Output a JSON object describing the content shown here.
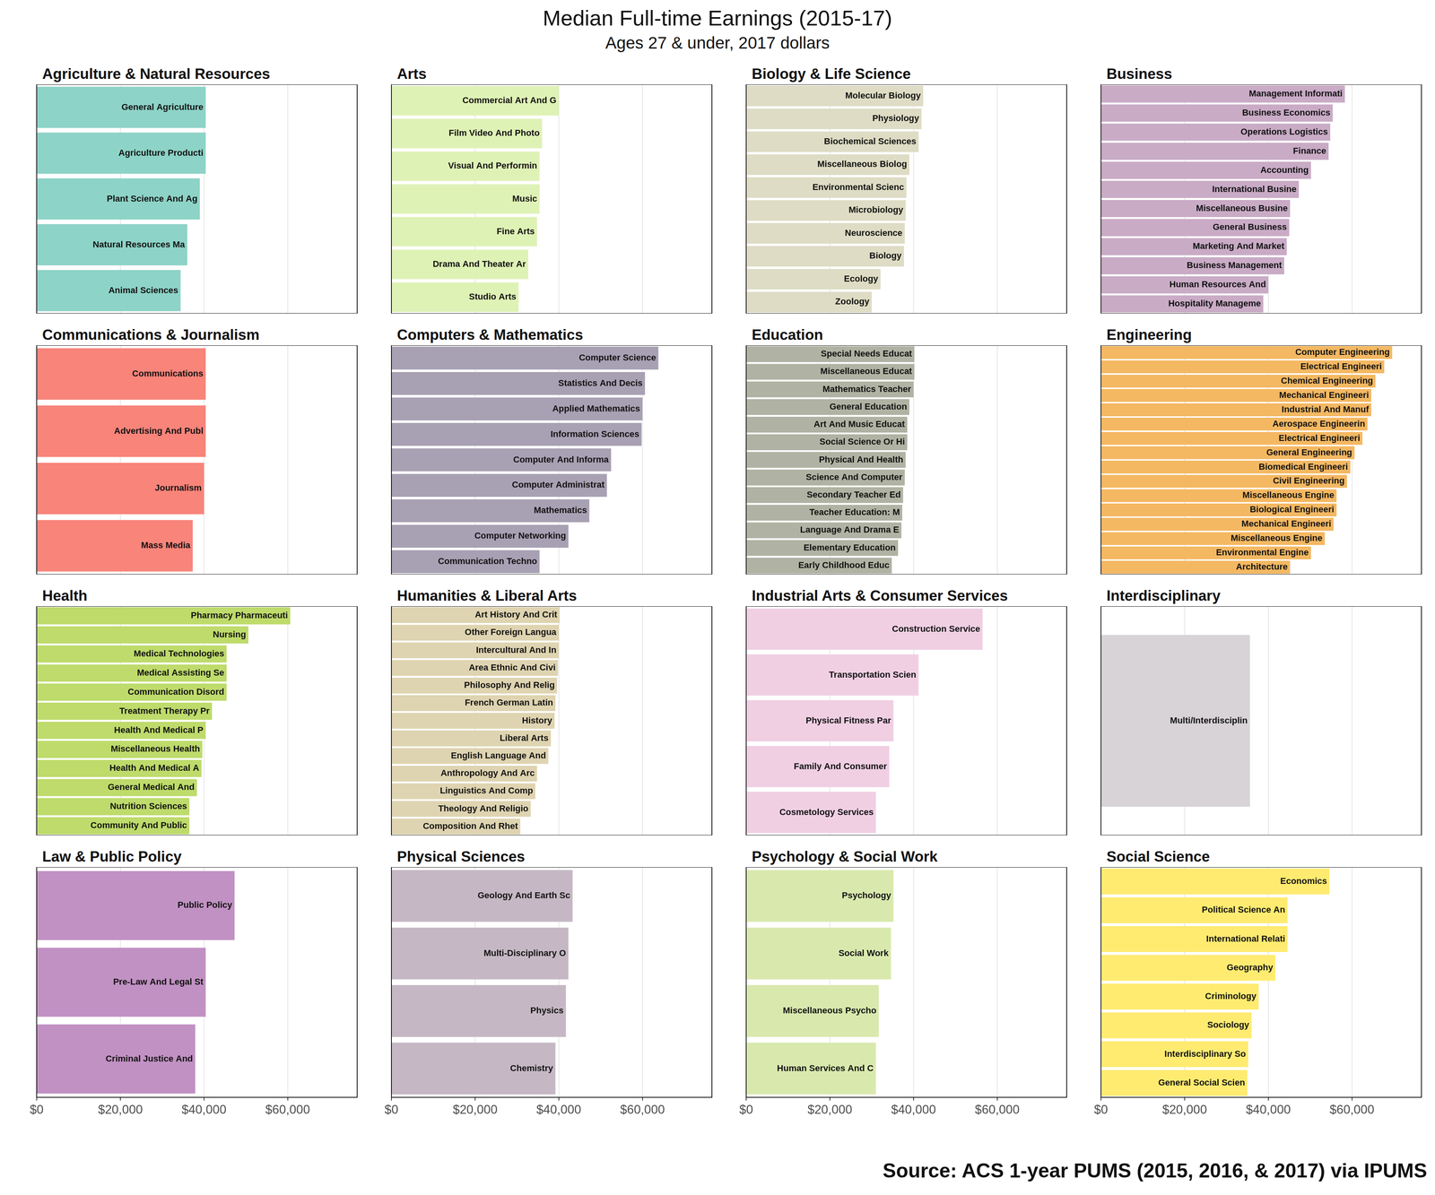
{
  "title": "Median Full-time Earnings (2015-17)",
  "subtitle": "Ages 27 & under, 2017 dollars",
  "source": "Source: ACS 1-year PUMS (2015, 2016, & 2017) via IPUMS",
  "chart_data": [
    {
      "type": "bar",
      "orientation": "horizontal",
      "title": "Agriculture & Natural Resources",
      "color": "#8dd3c7",
      "grid": true,
      "tick_labels": false,
      "categories": [
        "General Agriculture",
        "Agriculture Producti",
        "Plant Science And Ag",
        "Natural Resources Ma",
        "Animal Sciences"
      ],
      "values": [
        40400,
        40400,
        39000,
        36000,
        34400
      ],
      "xlim": [
        0,
        76600
      ],
      "xticks": [
        {
          "value": 0,
          "label": "$0"
        },
        {
          "value": 20000,
          "label": "$20,000"
        },
        {
          "value": 40000,
          "label": "$40,000"
        },
        {
          "value": 60000,
          "label": "$60,000"
        }
      ]
    },
    {
      "type": "bar",
      "orientation": "horizontal",
      "title": "Arts",
      "color": "#dff2b6",
      "grid": true,
      "tick_labels": false,
      "categories": [
        "Commercial Art And G",
        "Film Video And Photo",
        "Visual And Performin",
        "Music",
        "Fine Arts",
        "Drama And Theater Ar",
        "Studio Arts"
      ],
      "values": [
        40000,
        36000,
        35400,
        35400,
        34800,
        32700,
        30400
      ],
      "xlim": [
        0,
        76600
      ],
      "xticks": [
        {
          "value": 0,
          "label": "$0"
        },
        {
          "value": 20000,
          "label": "$20,000"
        },
        {
          "value": 40000,
          "label": "$40,000"
        },
        {
          "value": 60000,
          "label": "$60,000"
        }
      ]
    },
    {
      "type": "bar",
      "orientation": "horizontal",
      "title": "Biology & Life Science",
      "color": "#dedcc4",
      "grid": true,
      "tick_labels": false,
      "categories": [
        "Molecular Biology",
        "Physiology",
        "Biochemical Sciences",
        "Miscellaneous Biolog",
        "Environmental Scienc",
        "Microbiology",
        "Neuroscience",
        "Biology",
        "Ecology",
        "Zoology"
      ],
      "values": [
        42300,
        41900,
        41200,
        39000,
        38300,
        38100,
        37900,
        37700,
        32100,
        30000
      ],
      "xlim": [
        0,
        76600
      ],
      "xticks": [
        {
          "value": 0,
          "label": "$0"
        },
        {
          "value": 20000,
          "label": "$20,000"
        },
        {
          "value": 40000,
          "label": "$40,000"
        },
        {
          "value": 60000,
          "label": "$60,000"
        }
      ]
    },
    {
      "type": "bar",
      "orientation": "horizontal",
      "title": "Business",
      "color": "#c9abc6",
      "grid": true,
      "tick_labels": false,
      "categories": [
        "Management Informati",
        "Business Economics",
        "Operations Logistics",
        "Finance",
        "Accounting",
        "International Busine",
        "Miscellaneous Busine",
        "General Business",
        "Marketing And Market",
        "Business Management",
        "Human Resources And",
        "Hospitality Manageme"
      ],
      "values": [
        58300,
        55400,
        54800,
        54400,
        50200,
        47300,
        45200,
        45000,
        44400,
        43800,
        40000,
        38800
      ],
      "xlim": [
        0,
        76600
      ],
      "xticks": [
        {
          "value": 0,
          "label": "$0"
        },
        {
          "value": 20000,
          "label": "$20,000"
        },
        {
          "value": 40000,
          "label": "$40,000"
        },
        {
          "value": 60000,
          "label": "$60,000"
        }
      ]
    },
    {
      "type": "bar",
      "orientation": "horizontal",
      "title": "Communications & Journalism",
      "color": "#f8847a",
      "grid": true,
      "tick_labels": false,
      "categories": [
        "Communications",
        "Advertising And Publ",
        "Journalism",
        "Mass Media"
      ],
      "values": [
        40400,
        40400,
        40000,
        37300
      ],
      "xlim": [
        0,
        76600
      ],
      "xticks": [
        {
          "value": 0,
          "label": "$0"
        },
        {
          "value": 20000,
          "label": "$20,000"
        },
        {
          "value": 40000,
          "label": "$40,000"
        },
        {
          "value": 60000,
          "label": "$60,000"
        }
      ]
    },
    {
      "type": "bar",
      "orientation": "horizontal",
      "title": "Computers & Mathematics",
      "color": "#a8a0b3",
      "grid": true,
      "tick_labels": false,
      "categories": [
        "Computer Science",
        "Statistics And Decis",
        "Applied Mathematics",
        "Information Sciences",
        "Computer And Informa",
        "Computer Administrat",
        "Mathematics",
        "Computer Networking",
        "Communication Techno"
      ],
      "values": [
        63800,
        60600,
        60000,
        59800,
        52500,
        51500,
        47300,
        42300,
        35400
      ],
      "xlim": [
        0,
        76600
      ],
      "xticks": [
        {
          "value": 0,
          "label": "$0"
        },
        {
          "value": 20000,
          "label": "$20,000"
        },
        {
          "value": 40000,
          "label": "$40,000"
        },
        {
          "value": 60000,
          "label": "$60,000"
        }
      ]
    },
    {
      "type": "bar",
      "orientation": "horizontal",
      "title": "Education",
      "color": "#b0b3a3",
      "grid": true,
      "tick_labels": false,
      "categories": [
        "Special Needs Educat",
        "Miscellaneous Educat",
        "Mathematics Teacher",
        "General Education",
        "Art And Music Educat",
        "Social Science Or Hi",
        "Physical And Health",
        "Science And Computer",
        "Secondary Teacher Ed",
        "Teacher Education: M",
        "Language And Drama E",
        "Elementary Education",
        "Early Childhood Educ"
      ],
      "values": [
        40200,
        40200,
        40000,
        39000,
        38500,
        38500,
        38100,
        37900,
        37500,
        37300,
        37100,
        36300,
        34800
      ],
      "xlim": [
        0,
        76600
      ],
      "xticks": [
        {
          "value": 0,
          "label": "$0"
        },
        {
          "value": 20000,
          "label": "$20,000"
        },
        {
          "value": 40000,
          "label": "$40,000"
        },
        {
          "value": 60000,
          "label": "$60,000"
        }
      ]
    },
    {
      "type": "bar",
      "orientation": "horizontal",
      "title": "Engineering",
      "color": "#f4b862",
      "grid": true,
      "tick_labels": false,
      "categories": [
        "Computer Engineering",
        "Electrical Engineeri",
        "Chemical Engineering",
        "Mechanical Engineeri",
        "Industrial And Manuf",
        "Aerospace Engineerin",
        "Electrical Engineeri",
        "General Engineering",
        "Biomedical Engineeri",
        "Civil Engineering",
        "Miscellaneous Engine",
        "Biological Engineeri",
        "Mechanical Engineeri",
        "Miscellaneous Engine",
        "Environmental Engine",
        "Architecture"
      ],
      "values": [
        69600,
        67700,
        65600,
        64600,
        64600,
        63700,
        62500,
        60600,
        59600,
        58800,
        56300,
        56300,
        55600,
        53500,
        50200,
        45200
      ],
      "xlim": [
        0,
        76600
      ],
      "xticks": [
        {
          "value": 0,
          "label": "$0"
        },
        {
          "value": 20000,
          "label": "$20,000"
        },
        {
          "value": 40000,
          "label": "$40,000"
        },
        {
          "value": 60000,
          "label": "$60,000"
        }
      ]
    },
    {
      "type": "bar",
      "orientation": "horizontal",
      "title": "Health",
      "color": "#bedb6b",
      "grid": true,
      "tick_labels": false,
      "categories": [
        "Pharmacy Pharmaceuti",
        "Nursing",
        "Medical Technologies",
        "Medical Assisting Se",
        "Communication Disord",
        "Treatment Therapy Pr",
        "Health And Medical P",
        "Miscellaneous Health",
        "Health And Medical A",
        "General Medical And",
        "Nutrition Sciences",
        "Community And Public"
      ],
      "values": [
        60600,
        50600,
        45400,
        45400,
        45400,
        41900,
        40400,
        39600,
        39400,
        38300,
        36500,
        36500
      ],
      "xlim": [
        0,
        76600
      ],
      "xticks": [
        {
          "value": 0,
          "label": "$0"
        },
        {
          "value": 20000,
          "label": "$20,000"
        },
        {
          "value": 40000,
          "label": "$40,000"
        },
        {
          "value": 60000,
          "label": "$60,000"
        }
      ]
    },
    {
      "type": "bar",
      "orientation": "horizontal",
      "title": "Humanities & Liberal Arts",
      "color": "#dfd4b1",
      "grid": true,
      "tick_labels": false,
      "categories": [
        "Art History And Crit",
        "Other Foreign Langua",
        "Intercultural And In",
        "Area Ethnic And Civi",
        "Philosophy And Relig",
        "French German Latin",
        "History",
        "Liberal Arts",
        "English Language And",
        "Anthropology And Arc",
        "Linguistics And Comp",
        "Theology And Religio",
        "Composition And Rhet"
      ],
      "values": [
        40200,
        40000,
        40000,
        39800,
        39600,
        39200,
        39000,
        38100,
        37500,
        34800,
        34400,
        33300,
        30800
      ],
      "xlim": [
        0,
        76600
      ],
      "xticks": [
        {
          "value": 0,
          "label": "$0"
        },
        {
          "value": 20000,
          "label": "$20,000"
        },
        {
          "value": 40000,
          "label": "$40,000"
        },
        {
          "value": 60000,
          "label": "$60,000"
        }
      ]
    },
    {
      "type": "bar",
      "orientation": "horizontal",
      "title": "Industrial Arts & Consumer Services",
      "color": "#f0cfe3",
      "grid": true,
      "tick_labels": false,
      "categories": [
        "Construction Service",
        "Transportation Scien",
        "Physical Fitness Par",
        "Family And Consumer",
        "Cosmetology Services"
      ],
      "values": [
        56500,
        41200,
        35200,
        34200,
        31000
      ],
      "xlim": [
        0,
        76600
      ],
      "xticks": [
        {
          "value": 0,
          "label": "$0"
        },
        {
          "value": 20000,
          "label": "$20,000"
        },
        {
          "value": 40000,
          "label": "$40,000"
        },
        {
          "value": 60000,
          "label": "$60,000"
        }
      ]
    },
    {
      "type": "bar",
      "orientation": "horizontal",
      "title": "Interdisciplinary",
      "color": "#d7d3d7",
      "grid": true,
      "tick_labels": false,
      "categories": [
        "Multi/Interdisciplin"
      ],
      "values": [
        35600
      ],
      "xlim": [
        0,
        76600
      ],
      "xticks": [
        {
          "value": 0,
          "label": "$0"
        },
        {
          "value": 20000,
          "label": "$20,000"
        },
        {
          "value": 40000,
          "label": "$40,000"
        },
        {
          "value": 60000,
          "label": "$60,000"
        }
      ]
    },
    {
      "type": "bar",
      "orientation": "horizontal",
      "title": "Law & Public Policy",
      "color": "#c191c3",
      "grid": true,
      "tick_labels": "x",
      "categories": [
        "Public Policy",
        "Pre-Law And Legal St",
        "Criminal Justice And"
      ],
      "values": [
        47300,
        40400,
        37900
      ],
      "xlim": [
        0,
        76600
      ],
      "xticks": [
        {
          "value": 0,
          "label": "$0"
        },
        {
          "value": 20000,
          "label": "$20,000"
        },
        {
          "value": 40000,
          "label": "$40,000"
        },
        {
          "value": 60000,
          "label": "$60,000"
        }
      ]
    },
    {
      "type": "bar",
      "orientation": "horizontal",
      "title": "Physical Sciences",
      "color": "#c5b8c4",
      "grid": true,
      "tick_labels": "x",
      "categories": [
        "Geology And Earth Sc",
        "Multi-Disciplinary O",
        "Physics",
        "Chemistry"
      ],
      "values": [
        43300,
        42300,
        41700,
        39200
      ],
      "xlim": [
        0,
        76600
      ],
      "xticks": [
        {
          "value": 0,
          "label": "$0"
        },
        {
          "value": 20000,
          "label": "$20,000"
        },
        {
          "value": 40000,
          "label": "$40,000"
        },
        {
          "value": 60000,
          "label": "$60,000"
        }
      ]
    },
    {
      "type": "bar",
      "orientation": "horizontal",
      "title": "Psychology & Social Work",
      "color": "#d9e9ae",
      "grid": true,
      "tick_labels": "x",
      "categories": [
        "Psychology",
        "Social Work",
        "Miscellaneous Psycho",
        "Human Services And C"
      ],
      "values": [
        35200,
        34600,
        31700,
        31000
      ],
      "xlim": [
        0,
        76600
      ],
      "xticks": [
        {
          "value": 0,
          "label": "$0"
        },
        {
          "value": 20000,
          "label": "$20,000"
        },
        {
          "value": 40000,
          "label": "$40,000"
        },
        {
          "value": 60000,
          "label": "$60,000"
        }
      ]
    },
    {
      "type": "bar",
      "orientation": "horizontal",
      "title": "Social Science",
      "color": "#ffeb70",
      "grid": true,
      "tick_labels": "x",
      "categories": [
        "Economics",
        "Political Science An",
        "International Relati",
        "Geography",
        "Criminology",
        "Sociology",
        "Interdisciplinary So",
        "General Social Scien"
      ],
      "values": [
        54600,
        44600,
        44600,
        41700,
        37700,
        36000,
        35200,
        35000
      ],
      "xlim": [
        0,
        76600
      ],
      "xticks": [
        {
          "value": 0,
          "label": "$0"
        },
        {
          "value": 20000,
          "label": "$20,000"
        },
        {
          "value": 40000,
          "label": "$40,000"
        },
        {
          "value": 60000,
          "label": "$60,000"
        }
      ]
    }
  ]
}
